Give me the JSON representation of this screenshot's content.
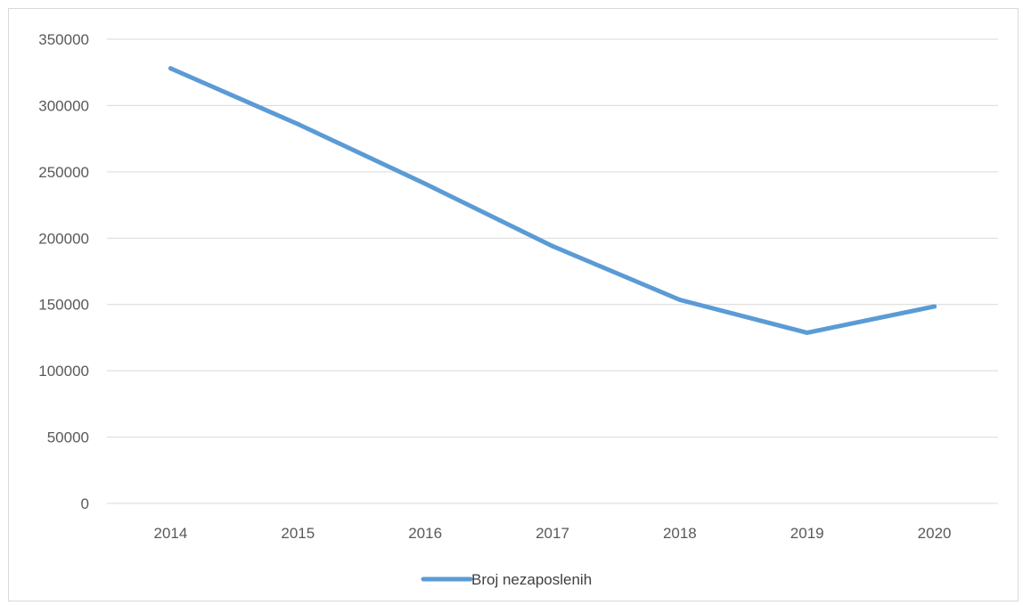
{
  "chart_data": {
    "type": "line",
    "title": "",
    "xlabel": "",
    "ylabel": "",
    "categories": [
      "2014",
      "2015",
      "2016",
      "2017",
      "2018",
      "2019",
      "2020"
    ],
    "series": [
      {
        "name": "Broj nezaposlenih",
        "values": [
          328000,
          286000,
          241000,
          194000,
          153500,
          128700,
          148500
        ],
        "color": "#5b9bd5"
      }
    ],
    "ylim": [
      0,
      350000
    ],
    "yticks": [
      "0",
      "50000",
      "100000",
      "150000",
      "200000",
      "250000",
      "300000",
      "350000"
    ],
    "grid": true,
    "legend": "bottom-center"
  }
}
